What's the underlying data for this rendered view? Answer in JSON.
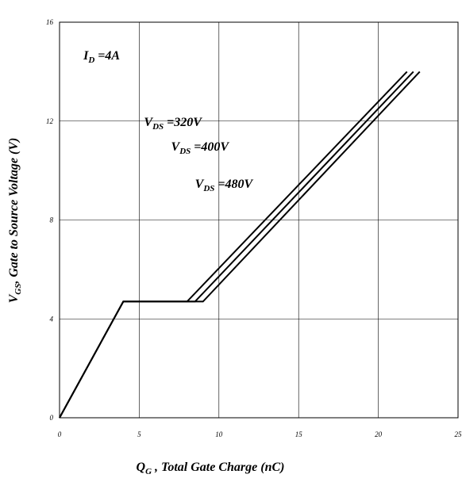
{
  "chart_data": {
    "type": "line",
    "xlabel": {
      "main": "Q",
      "sub": "G",
      "rest": " , Total Gate Charge (nC)"
    },
    "ylabel": {
      "main": "V",
      "sub": "GS",
      "rest": ", Gate to Source Voltage (V)"
    },
    "xlim": [
      0,
      25
    ],
    "ylim": [
      0,
      16
    ],
    "xticks": [
      0,
      5,
      10,
      15,
      20,
      25
    ],
    "yticks": [
      0,
      4,
      8,
      12,
      16
    ],
    "grid": true,
    "annotations": [
      {
        "main": "I",
        "sub": "D",
        "rest": " =4A",
        "x": 1.5,
        "y": 14.5
      },
      {
        "main": "V",
        "sub": "DS",
        "rest": " =320V",
        "x": 5.3,
        "y": 11.8
      },
      {
        "main": "V",
        "sub": "DS",
        "rest": " =400V",
        "x": 7.0,
        "y": 10.8
      },
      {
        "main": "V",
        "sub": "DS",
        "rest": " =480V",
        "x": 8.5,
        "y": 9.3
      }
    ],
    "series": [
      {
        "x": [
          0,
          4.0,
          8.0,
          21.8
        ],
        "y": [
          0,
          4.7,
          4.7,
          14.0
        ]
      },
      {
        "x": [
          0,
          4.0,
          8.5,
          22.2
        ],
        "y": [
          0,
          4.7,
          4.7,
          14.0
        ]
      },
      {
        "x": [
          0,
          4.0,
          9.0,
          22.6
        ],
        "y": [
          0,
          4.7,
          4.7,
          14.0
        ]
      }
    ]
  }
}
